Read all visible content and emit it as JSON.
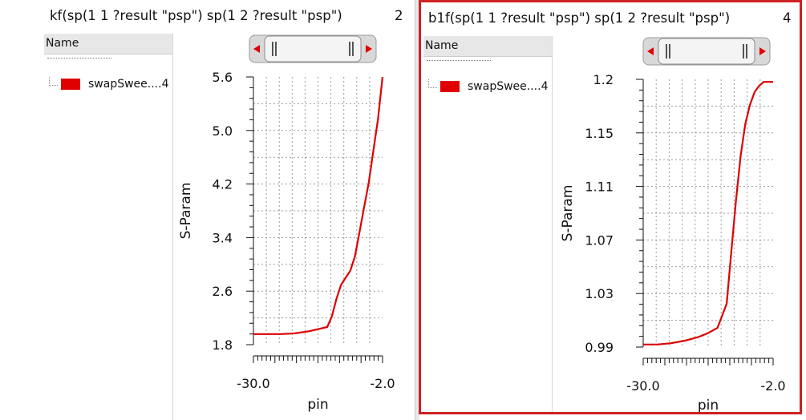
{
  "panels": [
    {
      "id": "left",
      "title": "kf(sp(1 1 ?result \"psp\") sp(1 2 ?result \"psp\")",
      "subwindow_number": "2",
      "legend_header": "Name",
      "legend_item": "swapSwee....4",
      "ylabel": "S-Param",
      "xlabel": "pin",
      "yticks": [
        "5.6",
        "5.0",
        "4.2",
        "3.4",
        "2.6",
        "1.8"
      ],
      "xticks": [
        "-30.0",
        "-2.0"
      ],
      "trace_color": "#dd0000"
    },
    {
      "id": "right",
      "title": "b1f(sp(1 1 ?result \"psp\") sp(1 2 ?result \"psp\")",
      "subwindow_number": "4",
      "legend_header": "Name",
      "legend_item": "swapSwee....4",
      "ylabel": "S-Param",
      "xlabel": "pin",
      "yticks": [
        "1.2",
        "1.15",
        "1.11",
        "1.07",
        "1.03",
        "0.99"
      ],
      "xticks": [
        "-30.0",
        "-2.0"
      ],
      "trace_color": "#dd0000"
    }
  ],
  "chart_data": [
    {
      "type": "line",
      "title": "kf(sp(1 1 ?result \"psp\") sp(1 2 ?result \"psp\")",
      "xlabel": "pin",
      "ylabel": "S-Param",
      "xlim": [
        -30,
        -2
      ],
      "ylim": [
        1.8,
        5.6
      ],
      "grid": true,
      "series": [
        {
          "name": "swapSwee....4",
          "x": [
            -30,
            -27,
            -24,
            -21,
            -18,
            -16,
            -14,
            -13,
            -12,
            -11,
            -10,
            -9,
            -8,
            -7,
            -6,
            -5,
            -4,
            -3,
            -2
          ],
          "y": [
            1.95,
            1.95,
            1.95,
            1.96,
            1.99,
            2.02,
            2.05,
            2.2,
            2.45,
            2.65,
            2.75,
            2.85,
            3.05,
            3.4,
            3.75,
            4.1,
            4.55,
            5.0,
            5.6
          ]
        }
      ]
    },
    {
      "type": "line",
      "title": "b1f(sp(1 1 ?result \"psp\") sp(1 2 ?result \"psp\")",
      "xlabel": "pin",
      "ylabel": "S-Param",
      "xlim": [
        -30,
        -2
      ],
      "ylim": [
        0.99,
        1.2
      ],
      "grid": true,
      "series": [
        {
          "name": "swapSwee....4",
          "x": [
            -30,
            -27,
            -24,
            -21,
            -18,
            -16,
            -14,
            -12,
            -11,
            -10,
            -9,
            -8,
            -7,
            -6,
            -5,
            -4,
            -3,
            -2
          ],
          "y": [
            0.992,
            0.992,
            0.993,
            0.995,
            0.998,
            1.001,
            1.005,
            1.024,
            1.065,
            1.105,
            1.14,
            1.165,
            1.18,
            1.19,
            1.195,
            1.198,
            1.198,
            1.198
          ]
        }
      ]
    }
  ]
}
